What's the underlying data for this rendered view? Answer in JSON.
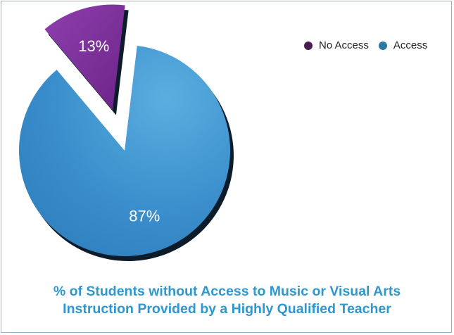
{
  "chart_data": {
    "type": "pie",
    "title_lines": [
      "% of Students without Access to Music or Visual Arts",
      "Instruction Provided by a Highly Qualified Teacher"
    ],
    "slices": [
      {
        "name": "No Access",
        "value": 13,
        "label": "13%",
        "color": "#7a2d96",
        "exploded": true
      },
      {
        "name": "Access",
        "value": 87,
        "label": "87%",
        "color": "#3b8fca",
        "exploded": false
      }
    ],
    "legend": [
      {
        "name": "No Access",
        "color": "#4a1b52"
      },
      {
        "name": "Access",
        "color": "#2a7ba3"
      }
    ],
    "legend_position": "top-right",
    "style": "3d-exploded"
  }
}
